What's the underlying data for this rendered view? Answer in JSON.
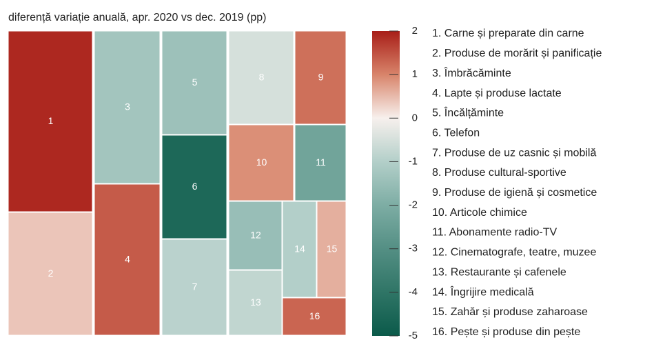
{
  "chart_data": {
    "type": "treemap",
    "title": "diferență variație anuală, apr. 2020 vs dec. 2019 (pp)",
    "ids": [
      "1",
      "2",
      "3",
      "4",
      "5",
      "6",
      "7",
      "8",
      "9",
      "10",
      "11",
      "12",
      "13",
      "14",
      "15",
      "16"
    ],
    "categories": [
      "1. Carne și preparate din carne",
      "2. Produse de morărit și panificație",
      "3. Îmbrăcăminte",
      "4. Lapte și produse lactate",
      "5. Încălțăminte",
      "6. Telefon",
      "7. Produse de uz casnic și mobilă",
      "8. Produse cultural-sportive",
      "9. Produse de igienă și cosmetice",
      "10. Articole chimice",
      "11. Abonamente radio-TV",
      "12. Cinematografe, teatre, muzee",
      "13. Restaurante și cafenele",
      "14. Îngrijire medicală",
      "15. Zahăr și produse zaharoase",
      "16. Pește și produse din pește"
    ],
    "values": [
      1.9,
      0.4,
      -1.3,
      1.4,
      -1.4,
      -4.5,
      -0.9,
      -0.5,
      1.2,
      0.9,
      -2.3,
      -1.5,
      -0.8,
      -1.0,
      0.6,
      1.3
    ],
    "colorscale": [
      "#0b5a4a",
      "#2f7566",
      "#548f84",
      "#7dada4",
      "#b3cfc9",
      "#f7f0ed",
      "#d8846a",
      "#a81e18"
    ],
    "clim": [
      -5,
      2
    ],
    "cticks": [
      2,
      1,
      0,
      -1,
      -2,
      -3,
      -4,
      -5
    ]
  }
}
